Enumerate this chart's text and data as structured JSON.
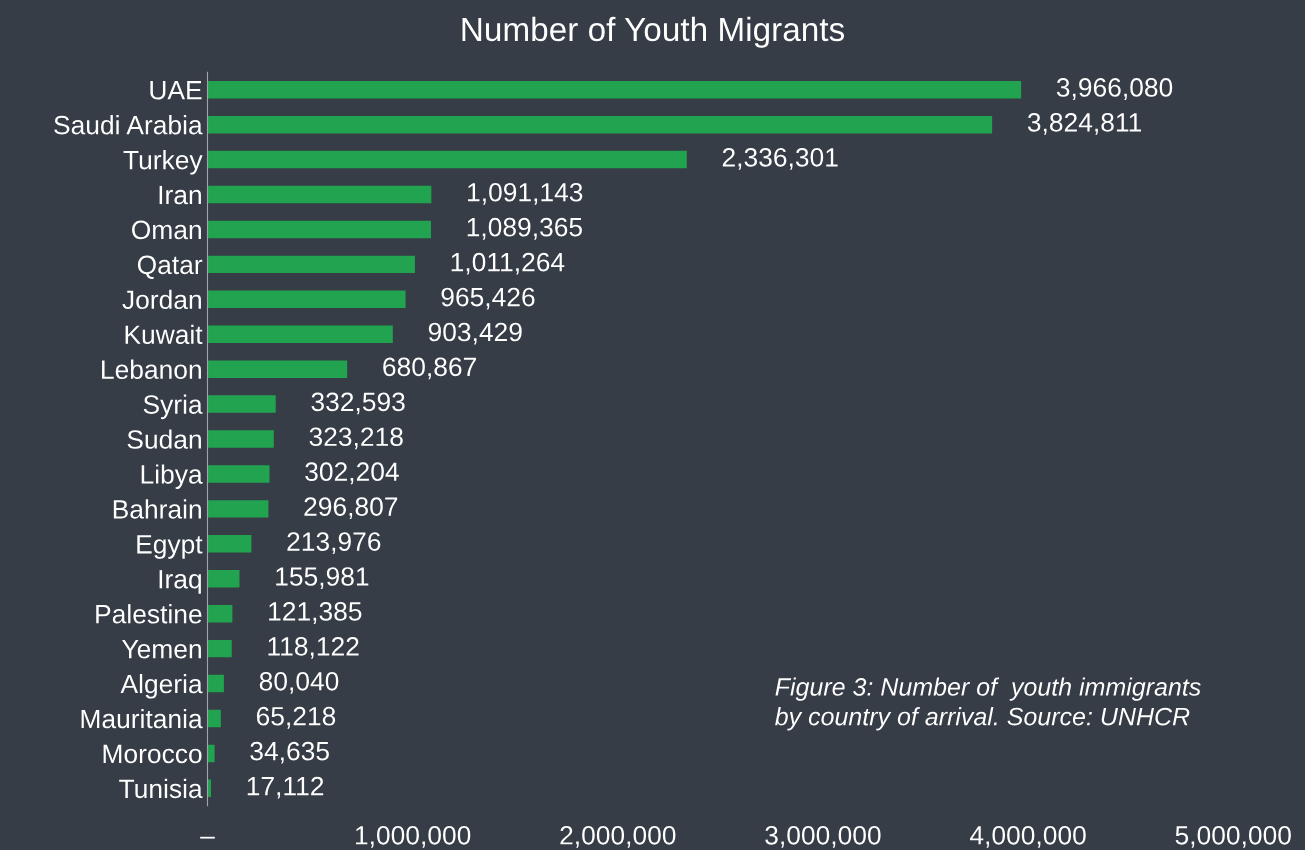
{
  "chart_data": {
    "type": "bar",
    "orientation": "horizontal",
    "title": "Number of Youth Migrants",
    "categories": [
      "UAE",
      "Saudi Arabia",
      "Turkey",
      "Iran",
      "Oman",
      "Qatar",
      "Jordan",
      "Kuwait",
      "Lebanon",
      "Syria",
      "Sudan",
      "Libya",
      "Bahrain",
      "Egypt",
      "Iraq",
      "Palestine",
      "Yemen",
      "Algeria",
      "Mauritania",
      "Morocco",
      "Tunisia"
    ],
    "values": [
      3966080,
      3824811,
      2336301,
      1091143,
      1089365,
      1011264,
      965426,
      903429,
      680867,
      332593,
      323218,
      302204,
      296807,
      213976,
      155981,
      121385,
      118122,
      80040,
      65218,
      34635,
      17112
    ],
    "value_labels": [
      "3,966,080",
      "3,824,811",
      "2,336,301",
      "1,091,143",
      "1,089,365",
      "1,011,264",
      "965,426",
      "903,429",
      "680,867",
      "332,593",
      "323,218",
      "302,204",
      "296,807",
      "213,976",
      "155,981",
      "121,385",
      "118,122",
      "80,040",
      "65,218",
      "34,635",
      "17,112"
    ],
    "color": "#22a34f",
    "xlim": [
      0,
      5000000
    ],
    "xticks": [
      {
        "value": 0,
        "label": "–"
      },
      {
        "value": 1000000,
        "label": "1,000,000"
      },
      {
        "value": 2000000,
        "label": "2,000,000"
      },
      {
        "value": 3000000,
        "label": "3,000,000"
      },
      {
        "value": 4000000,
        "label": "4,000,000"
      },
      {
        "value": 5000000,
        "label": "5,000,000"
      }
    ],
    "grid": false,
    "legend": false,
    "annotations": [
      "Figure 3: Number of  youth immigrants\nby country of arrival. Source: UNHCR"
    ]
  }
}
